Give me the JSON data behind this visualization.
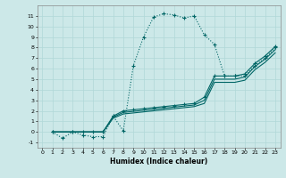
{
  "xlabel": "Humidex (Indice chaleur)",
  "xlim": [
    -0.5,
    23.5
  ],
  "ylim": [
    -1.5,
    12
  ],
  "xticks": [
    0,
    1,
    2,
    3,
    4,
    5,
    6,
    7,
    8,
    9,
    10,
    11,
    12,
    13,
    14,
    15,
    16,
    17,
    18,
    19,
    20,
    21,
    22,
    23
  ],
  "yticks": [
    -1,
    0,
    1,
    2,
    3,
    4,
    5,
    6,
    7,
    8,
    9,
    10,
    11
  ],
  "bg_color": "#cce8e8",
  "line_color": "#006666",
  "grid_color": "#b0d8d8",
  "curves": [
    {
      "x": [
        1,
        2,
        3,
        4,
        5,
        6,
        7,
        8,
        9,
        10,
        11,
        12,
        13,
        14,
        15,
        16,
        17,
        18,
        19,
        20,
        21,
        22,
        23
      ],
      "y": [
        0.0,
        -0.6,
        0.0,
        -0.3,
        -0.45,
        -0.45,
        1.5,
        0.1,
        6.3,
        9.0,
        10.9,
        11.2,
        11.1,
        10.8,
        11.0,
        9.2,
        8.3,
        5.3,
        5.3,
        5.3,
        6.3,
        7.0,
        8.0
      ],
      "style": "dotted",
      "marker": true
    },
    {
      "x": [
        1,
        3,
        4,
        5,
        6,
        7,
        8,
        9,
        10,
        11,
        12,
        13,
        14,
        15,
        16,
        17,
        18,
        19,
        20,
        21,
        22,
        23
      ],
      "y": [
        0.0,
        0.0,
        0.0,
        0.0,
        0.0,
        1.5,
        2.0,
        2.1,
        2.2,
        2.3,
        2.4,
        2.5,
        2.6,
        2.7,
        3.3,
        5.3,
        5.3,
        5.3,
        5.5,
        6.5,
        7.2,
        8.1
      ],
      "style": "solid",
      "marker": true
    },
    {
      "x": [
        1,
        3,
        4,
        5,
        6,
        7,
        8,
        9,
        10,
        11,
        12,
        13,
        14,
        15,
        16,
        17,
        18,
        19,
        20,
        21,
        22,
        23
      ],
      "y": [
        0.0,
        0.0,
        0.0,
        0.0,
        0.0,
        1.4,
        1.85,
        1.95,
        2.05,
        2.15,
        2.25,
        2.35,
        2.45,
        2.55,
        3.0,
        5.0,
        5.0,
        5.0,
        5.2,
        6.2,
        6.9,
        7.8
      ],
      "style": "solid",
      "marker": false
    },
    {
      "x": [
        1,
        3,
        4,
        5,
        6,
        7,
        8,
        9,
        10,
        11,
        12,
        13,
        14,
        15,
        16,
        17,
        18,
        19,
        20,
        21,
        22,
        23
      ],
      "y": [
        0.0,
        0.0,
        0.0,
        0.0,
        0.0,
        1.3,
        1.7,
        1.8,
        1.9,
        2.0,
        2.1,
        2.2,
        2.3,
        2.4,
        2.7,
        4.7,
        4.7,
        4.7,
        4.9,
        5.9,
        6.6,
        7.5
      ],
      "style": "solid",
      "marker": false
    }
  ]
}
